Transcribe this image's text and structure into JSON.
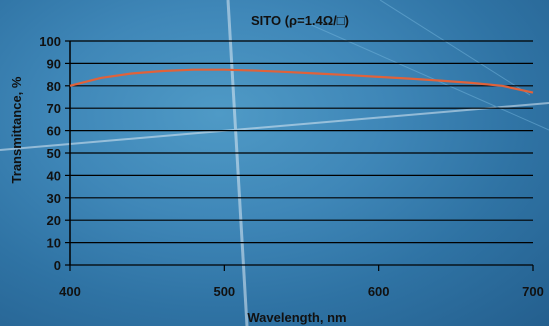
{
  "chart_data": {
    "type": "line",
    "title": "SITO (ρ=1.4Ω/□)",
    "xlabel": "Wavelength, nm",
    "ylabel": "Transmittance, %",
    "xlim": [
      400,
      700
    ],
    "ylim": [
      0,
      100
    ],
    "xticks": [
      400,
      500,
      600,
      700
    ],
    "yticks": [
      0,
      10,
      20,
      30,
      40,
      50,
      60,
      70,
      80,
      90,
      100
    ],
    "grid": "horizontal",
    "line_color": "#e0623a",
    "series": [
      {
        "x": [
          400,
          420,
          440,
          460,
          480,
          500,
          520,
          540,
          560,
          580,
          600,
          620,
          640,
          660,
          680,
          700
        ],
        "y": [
          80,
          83.5,
          85.5,
          86.6,
          87.2,
          87.2,
          86.8,
          86.2,
          85.5,
          84.8,
          84.0,
          83.2,
          82.3,
          81.3,
          80.0,
          77.0
        ]
      }
    ]
  }
}
